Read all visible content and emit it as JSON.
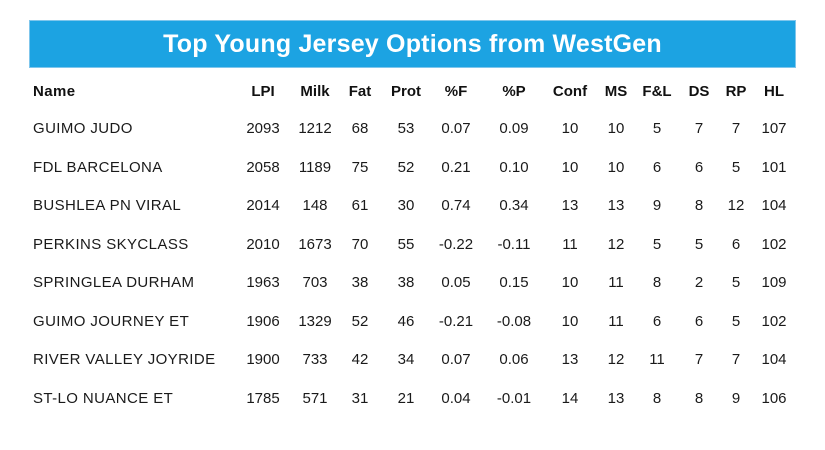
{
  "title": "Top Young Jersey Options from WestGen",
  "colors": {
    "banner_background": "#1ca3e2",
    "text": "#1a1a1a"
  },
  "chart_data": {
    "type": "table",
    "title": "Top Young Jersey Options from WestGen",
    "columns": [
      "Name",
      "LPI",
      "Milk",
      "Fat",
      "Prot",
      "%F",
      "%P",
      "Conf",
      "MS",
      "F&L",
      "DS",
      "RP",
      "HL"
    ],
    "rows": [
      [
        "GUIMO JUDO",
        "2093",
        "1212",
        "68",
        "53",
        "0.07",
        "0.09",
        "10",
        "10",
        "5",
        "7",
        "7",
        "107"
      ],
      [
        "FDL BARCELONA",
        "2058",
        "1189",
        "75",
        "52",
        "0.21",
        "0.10",
        "10",
        "10",
        "6",
        "6",
        "5",
        "101"
      ],
      [
        "BUSHLEA PN VIRAL",
        "2014",
        "148",
        "61",
        "30",
        "0.74",
        "0.34",
        "13",
        "13",
        "9",
        "8",
        "12",
        "104"
      ],
      [
        "PERKINS SKYCLASS",
        "2010",
        "1673",
        "70",
        "55",
        "-0.22",
        "-0.11",
        "11",
        "12",
        "5",
        "5",
        "6",
        "102"
      ],
      [
        "SPRINGLEA DURHAM",
        "1963",
        "703",
        "38",
        "38",
        "0.05",
        "0.15",
        "10",
        "11",
        "8",
        "2",
        "5",
        "109"
      ],
      [
        "GUIMO JOURNEY ET",
        "1906",
        "1329",
        "52",
        "46",
        "-0.21",
        "-0.08",
        "10",
        "11",
        "6",
        "6",
        "5",
        "102"
      ],
      [
        "RIVER VALLEY JOYRIDE",
        "1900",
        "733",
        "42",
        "34",
        "0.07",
        "0.06",
        "13",
        "12",
        "11",
        "7",
        "7",
        "104"
      ],
      [
        "ST-LO NUANCE ET",
        "1785",
        "571",
        "31",
        "21",
        "0.04",
        "-0.01",
        "14",
        "13",
        "8",
        "8",
        "9",
        "106"
      ]
    ]
  }
}
